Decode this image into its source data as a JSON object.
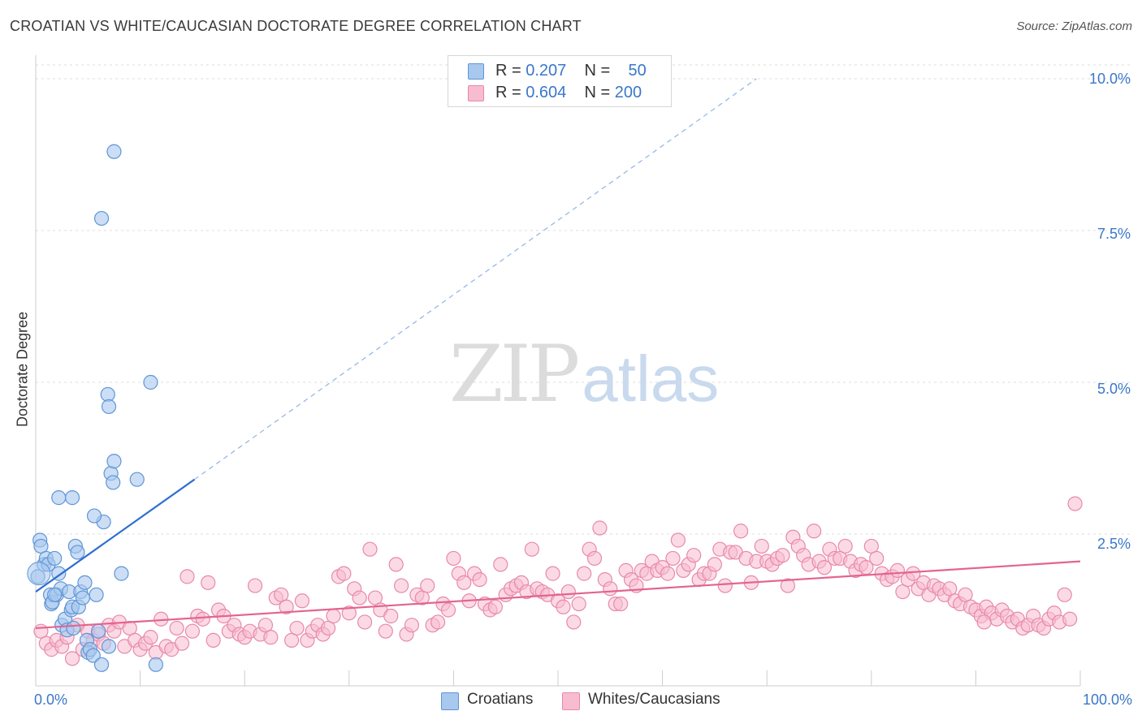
{
  "title": "CROATIAN VS WHITE/CAUCASIAN DOCTORATE DEGREE CORRELATION CHART",
  "source": "Source: ZipAtlas.com",
  "watermark": {
    "zip": "ZIP",
    "atlas": "atlas"
  },
  "colors": {
    "blue_fill": "#a8c8ee",
    "blue_stroke": "#5f95d6",
    "blue_line": "#2f6fd0",
    "pink_fill": "#f7bcd0",
    "pink_stroke": "#e889aa",
    "pink_line": "#e3648f",
    "grid": "#dddddd",
    "tick_text": "#3b77c9"
  },
  "legend": {
    "rows": [
      {
        "r_label": "R =",
        "r_value": "0.207",
        "n_label": "N =",
        "n_value": "50",
        "color": "#a8c8ee"
      },
      {
        "r_label": "R =",
        "r_value": "0.604",
        "n_label": "N =",
        "n_value": "200",
        "color": "#f7bcd0"
      }
    ]
  },
  "bottom_legend": [
    {
      "label": "Croatians",
      "color": "#a8c8ee"
    },
    {
      "label": "Whites/Caucasians",
      "color": "#f7bcd0"
    }
  ],
  "chart_data": {
    "type": "scatter",
    "title": "CROATIAN VS WHITE/CAUCASIAN DOCTORATE DEGREE CORRELATION CHART",
    "xlabel": "",
    "ylabel": "Doctorate Degree",
    "xlim": [
      0,
      100
    ],
    "ylim": [
      0,
      10.5
    ],
    "x_tick_labels": [
      "0.0%",
      "100.0%"
    ],
    "y_ticks": [
      2.5,
      5.0,
      7.5,
      10.0
    ],
    "y_tick_labels": [
      "2.5%",
      "5.0%",
      "7.5%",
      "10.0%"
    ],
    "grid": "horizontal dashed",
    "series": [
      {
        "name": "Croatians",
        "R": 0.207,
        "N": 50,
        "trend": {
          "x0": 0,
          "y0": 1.55,
          "x1": 15.2,
          "y1": 3.4,
          "dashed_to_x": 69,
          "dashed_to_y": 10.0
        },
        "points": [
          [
            0.2,
            1.8
          ],
          [
            0.4,
            2.4
          ],
          [
            0.5,
            2.3
          ],
          [
            0.8,
            2.0
          ],
          [
            1.0,
            2.1
          ],
          [
            1.2,
            2.0
          ],
          [
            1.4,
            1.5
          ],
          [
            1.5,
            1.35
          ],
          [
            1.6,
            1.38
          ],
          [
            1.8,
            2.1
          ],
          [
            2.0,
            1.5
          ],
          [
            2.2,
            1.85
          ],
          [
            2.4,
            1.6
          ],
          [
            2.5,
            1.0
          ],
          [
            2.8,
            1.1
          ],
          [
            3.0,
            0.92
          ],
          [
            3.2,
            1.55
          ],
          [
            3.4,
            1.25
          ],
          [
            3.5,
            1.3
          ],
          [
            3.6,
            0.95
          ],
          [
            3.8,
            2.3
          ],
          [
            4.0,
            2.2
          ],
          [
            4.1,
            1.3
          ],
          [
            4.3,
            1.55
          ],
          [
            4.5,
            1.45
          ],
          [
            4.7,
            1.7
          ],
          [
            4.9,
            0.75
          ],
          [
            5.0,
            0.55
          ],
          [
            5.2,
            0.6
          ],
          [
            5.5,
            0.5
          ],
          [
            5.8,
            1.5
          ],
          [
            6.0,
            0.9
          ],
          [
            6.3,
            0.35
          ],
          [
            6.5,
            2.7
          ],
          [
            7.0,
            0.65
          ],
          [
            7.2,
            3.5
          ],
          [
            7.5,
            3.7
          ],
          [
            8.2,
            1.85
          ],
          [
            9.7,
            3.4
          ],
          [
            11.0,
            5.0
          ],
          [
            11.5,
            0.35
          ],
          [
            6.9,
            4.8
          ],
          [
            7.0,
            4.6
          ],
          [
            7.4,
            3.35
          ],
          [
            2.2,
            3.1
          ],
          [
            3.5,
            3.1
          ],
          [
            5.6,
            2.8
          ],
          [
            7.5,
            8.8
          ],
          [
            6.3,
            7.7
          ],
          [
            1.8,
            1.5
          ]
        ]
      },
      {
        "name": "Whites/Caucasians",
        "R": 0.604,
        "N": 200,
        "trend": {
          "x0": 0,
          "y0": 0.95,
          "x1": 100,
          "y1": 2.05
        },
        "points": [
          [
            0.5,
            0.9
          ],
          [
            1.0,
            0.7
          ],
          [
            1.5,
            0.6
          ],
          [
            2.0,
            0.75
          ],
          [
            2.5,
            0.65
          ],
          [
            3.0,
            0.8
          ],
          [
            3.5,
            0.45
          ],
          [
            4.0,
            1.0
          ],
          [
            4.5,
            0.6
          ],
          [
            5.0,
            0.9
          ],
          [
            5.5,
            0.75
          ],
          [
            6.0,
            0.85
          ],
          [
            6.5,
            0.7
          ],
          [
            7.0,
            1.0
          ],
          [
            7.5,
            0.9
          ],
          [
            8.0,
            1.05
          ],
          [
            8.5,
            0.65
          ],
          [
            9.0,
            0.95
          ],
          [
            9.5,
            0.75
          ],
          [
            10.0,
            0.6
          ],
          [
            10.5,
            0.7
          ],
          [
            11.0,
            0.8
          ],
          [
            11.5,
            0.55
          ],
          [
            12.0,
            1.1
          ],
          [
            12.5,
            0.65
          ],
          [
            13.0,
            0.6
          ],
          [
            13.5,
            0.95
          ],
          [
            14.0,
            0.7
          ],
          [
            14.5,
            1.8
          ],
          [
            15.0,
            0.9
          ],
          [
            15.5,
            1.15
          ],
          [
            16.0,
            1.1
          ],
          [
            16.5,
            1.7
          ],
          [
            17.0,
            0.75
          ],
          [
            17.5,
            1.25
          ],
          [
            18.0,
            1.15
          ],
          [
            18.5,
            0.9
          ],
          [
            19.0,
            1.0
          ],
          [
            19.5,
            0.85
          ],
          [
            20.0,
            0.8
          ],
          [
            20.5,
            0.9
          ],
          [
            21.0,
            1.65
          ],
          [
            21.5,
            0.85
          ],
          [
            22.0,
            1.0
          ],
          [
            22.5,
            0.8
          ],
          [
            23.0,
            1.45
          ],
          [
            23.5,
            1.5
          ],
          [
            24.0,
            1.3
          ],
          [
            24.5,
            0.75
          ],
          [
            25.0,
            0.95
          ],
          [
            25.5,
            1.4
          ],
          [
            26.0,
            0.75
          ],
          [
            26.5,
            0.9
          ],
          [
            27.0,
            1.0
          ],
          [
            27.5,
            0.85
          ],
          [
            28.0,
            0.95
          ],
          [
            28.5,
            1.15
          ],
          [
            29.0,
            1.8
          ],
          [
            29.5,
            1.85
          ],
          [
            30.0,
            1.2
          ],
          [
            30.5,
            1.6
          ],
          [
            31.0,
            1.45
          ],
          [
            31.5,
            1.05
          ],
          [
            32.0,
            2.25
          ],
          [
            32.5,
            1.45
          ],
          [
            33.0,
            1.25
          ],
          [
            33.5,
            0.9
          ],
          [
            34.0,
            1.15
          ],
          [
            34.5,
            2.0
          ],
          [
            35.0,
            1.65
          ],
          [
            35.5,
            0.85
          ],
          [
            36.0,
            1.0
          ],
          [
            36.5,
            1.5
          ],
          [
            37.0,
            1.45
          ],
          [
            37.5,
            1.65
          ],
          [
            38.0,
            1.0
          ],
          [
            38.5,
            1.05
          ],
          [
            39.0,
            1.35
          ],
          [
            39.5,
            1.25
          ],
          [
            40.0,
            2.1
          ],
          [
            40.5,
            1.85
          ],
          [
            41.0,
            1.7
          ],
          [
            41.5,
            1.4
          ],
          [
            42.0,
            1.85
          ],
          [
            42.5,
            1.75
          ],
          [
            43.0,
            1.35
          ],
          [
            43.5,
            1.25
          ],
          [
            44.0,
            1.3
          ],
          [
            44.5,
            2.0
          ],
          [
            45.0,
            1.5
          ],
          [
            45.5,
            1.6
          ],
          [
            46.0,
            1.65
          ],
          [
            46.5,
            1.7
          ],
          [
            47.0,
            1.55
          ],
          [
            47.5,
            2.25
          ],
          [
            48.0,
            1.6
          ],
          [
            48.5,
            1.55
          ],
          [
            49.0,
            1.5
          ],
          [
            49.5,
            1.85
          ],
          [
            50.0,
            1.4
          ],
          [
            50.5,
            1.3
          ],
          [
            51.0,
            1.55
          ],
          [
            51.5,
            1.05
          ],
          [
            52.0,
            1.35
          ],
          [
            52.5,
            1.85
          ],
          [
            53.0,
            2.25
          ],
          [
            53.5,
            2.1
          ],
          [
            54.0,
            2.6
          ],
          [
            54.5,
            1.75
          ],
          [
            55.0,
            1.6
          ],
          [
            55.5,
            1.35
          ],
          [
            56.0,
            1.35
          ],
          [
            56.5,
            1.9
          ],
          [
            57.0,
            1.75
          ],
          [
            57.5,
            1.65
          ],
          [
            58.0,
            1.9
          ],
          [
            58.5,
            1.85
          ],
          [
            59.0,
            2.05
          ],
          [
            59.5,
            1.9
          ],
          [
            60.0,
            1.95
          ],
          [
            60.5,
            1.85
          ],
          [
            61.0,
            2.1
          ],
          [
            61.5,
            2.4
          ],
          [
            62.0,
            1.9
          ],
          [
            62.5,
            2.0
          ],
          [
            63.0,
            2.15
          ],
          [
            63.5,
            1.75
          ],
          [
            64.0,
            1.85
          ],
          [
            64.5,
            1.85
          ],
          [
            65.0,
            2.0
          ],
          [
            65.5,
            2.25
          ],
          [
            66.0,
            1.65
          ],
          [
            66.5,
            2.2
          ],
          [
            67.0,
            2.2
          ],
          [
            67.5,
            2.55
          ],
          [
            68.0,
            2.1
          ],
          [
            68.5,
            1.7
          ],
          [
            69.0,
            2.05
          ],
          [
            69.5,
            2.3
          ],
          [
            70.0,
            2.05
          ],
          [
            70.5,
            2.0
          ],
          [
            71.0,
            2.1
          ],
          [
            71.5,
            2.15
          ],
          [
            72.0,
            1.65
          ],
          [
            72.5,
            2.45
          ],
          [
            73.0,
            2.3
          ],
          [
            73.5,
            2.15
          ],
          [
            74.0,
            2.0
          ],
          [
            74.5,
            2.55
          ],
          [
            75.0,
            2.05
          ],
          [
            75.5,
            1.95
          ],
          [
            76.0,
            2.25
          ],
          [
            76.5,
            2.1
          ],
          [
            77.0,
            2.1
          ],
          [
            77.5,
            2.3
          ],
          [
            78.0,
            2.05
          ],
          [
            78.5,
            1.9
          ],
          [
            79.0,
            2.0
          ],
          [
            79.5,
            1.95
          ],
          [
            80.0,
            2.3
          ],
          [
            80.5,
            2.1
          ],
          [
            81.0,
            1.85
          ],
          [
            81.5,
            1.75
          ],
          [
            82.0,
            1.8
          ],
          [
            82.5,
            1.9
          ],
          [
            83.0,
            1.55
          ],
          [
            83.5,
            1.75
          ],
          [
            84.0,
            1.85
          ],
          [
            84.5,
            1.6
          ],
          [
            85.0,
            1.7
          ],
          [
            85.5,
            1.5
          ],
          [
            86.0,
            1.65
          ],
          [
            86.5,
            1.6
          ],
          [
            87.0,
            1.5
          ],
          [
            87.5,
            1.6
          ],
          [
            88.0,
            1.4
          ],
          [
            88.5,
            1.35
          ],
          [
            89.0,
            1.5
          ],
          [
            89.5,
            1.3
          ],
          [
            90.0,
            1.25
          ],
          [
            90.5,
            1.15
          ],
          [
            91.0,
            1.3
          ],
          [
            91.5,
            1.2
          ],
          [
            92.0,
            1.1
          ],
          [
            92.5,
            1.25
          ],
          [
            93.0,
            1.15
          ],
          [
            93.5,
            1.05
          ],
          [
            94.0,
            1.1
          ],
          [
            94.5,
            0.95
          ],
          [
            95.0,
            1.0
          ],
          [
            95.5,
            1.15
          ],
          [
            96.0,
            1.0
          ],
          [
            96.5,
            0.95
          ],
          [
            97.0,
            1.1
          ],
          [
            97.5,
            1.2
          ],
          [
            98.0,
            1.05
          ],
          [
            98.5,
            1.5
          ],
          [
            99.0,
            1.1
          ],
          [
            99.5,
            3.0
          ],
          [
            90.8,
            1.05
          ]
        ]
      }
    ]
  }
}
